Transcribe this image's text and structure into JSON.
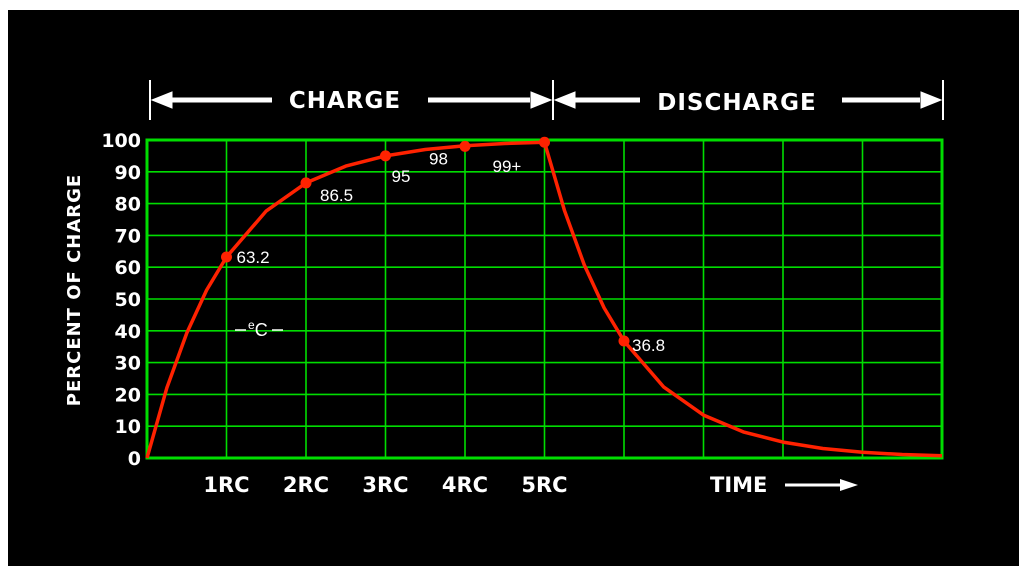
{
  "colors": {
    "background": "#000000",
    "grid": "#00dd00",
    "curve": "#ff2200",
    "text": "#ffffff"
  },
  "header": {
    "charge_label": "CHARGE",
    "discharge_label": "DISCHARGE"
  },
  "curve_annotation": {
    "symbol": "e",
    "subscript": "C"
  },
  "chart_data": {
    "type": "line",
    "title": "",
    "ylabel": "PERCENT OF CHARGE",
    "xlabel": "TIME",
    "ylim": [
      0,
      100
    ],
    "xlim": [
      0,
      10
    ],
    "grid": true,
    "y_ticks": [
      "0",
      "10",
      "20",
      "30",
      "40",
      "50",
      "60",
      "70",
      "80",
      "90",
      "100"
    ],
    "x_tick_labels": [
      {
        "x": 1,
        "label": "1RC"
      },
      {
        "x": 2,
        "label": "2RC"
      },
      {
        "x": 3,
        "label": "3RC"
      },
      {
        "x": 4,
        "label": "4RC"
      },
      {
        "x": 5,
        "label": "5RC"
      }
    ],
    "series": [
      {
        "x": [
          0,
          0.25,
          0.5,
          0.75,
          1,
          1.5,
          2,
          2.5,
          3,
          3.5,
          4,
          4.5,
          5,
          5.25,
          5.5,
          5.75,
          6,
          6.5,
          7,
          7.5,
          8,
          8.5,
          9,
          9.5,
          10
        ],
        "values": [
          0,
          22.1,
          39.3,
          52.8,
          63.2,
          77.7,
          86.5,
          91.8,
          95.0,
          97.0,
          98.2,
          98.9,
          99.3,
          77.9,
          60.7,
          47.2,
          36.8,
          22.3,
          13.5,
          8.2,
          5.0,
          3.0,
          1.8,
          1.1,
          0.7
        ]
      }
    ],
    "marked_points": [
      {
        "x": 1,
        "y": 63.2,
        "label": "63.2"
      },
      {
        "x": 2,
        "y": 86.5,
        "label": "86.5"
      },
      {
        "x": 3,
        "y": 95,
        "label": "95"
      },
      {
        "x": 4,
        "y": 98,
        "label": "98"
      },
      {
        "x": 5,
        "y": 99.3,
        "label": "99+"
      },
      {
        "x": 6,
        "y": 36.8,
        "label": "36.8"
      }
    ]
  }
}
